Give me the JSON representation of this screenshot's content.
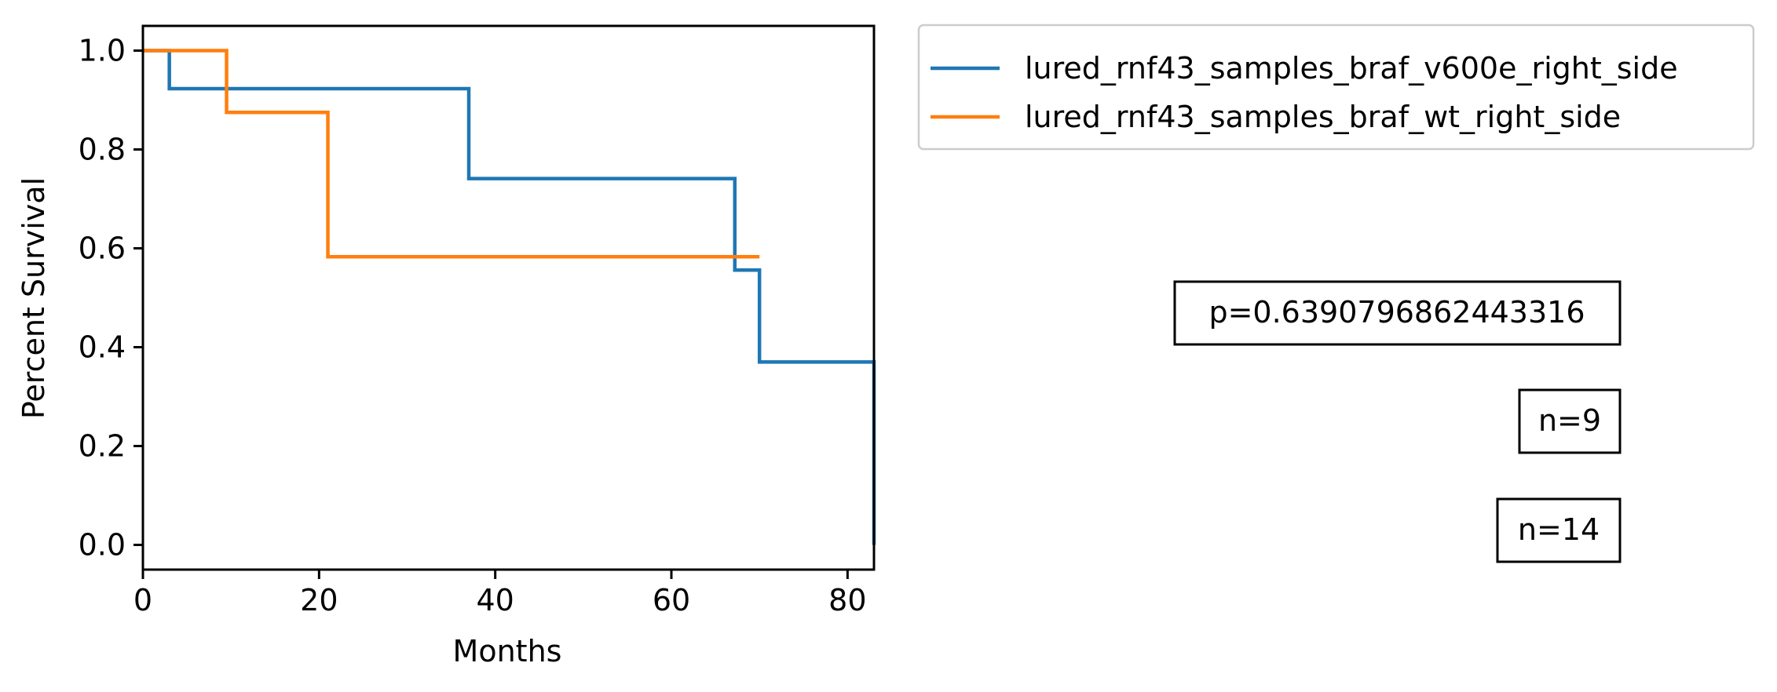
{
  "chart_data": {
    "type": "line",
    "xlabel": "Months",
    "ylabel": "Percent Survival",
    "xlim": [
      0,
      83
    ],
    "ylim": [
      -0.05,
      1.05
    ],
    "xticks": [
      0,
      20,
      40,
      60,
      80
    ],
    "yticks": [
      0.0,
      0.2,
      0.4,
      0.6,
      0.8,
      1.0
    ],
    "x_tick_labels": [
      "0",
      "20",
      "40",
      "60",
      "80"
    ],
    "y_tick_labels": [
      "0.0",
      "0.2",
      "0.4",
      "0.6",
      "0.8",
      "1.0"
    ],
    "grid": false,
    "legend_position": "outside top-right",
    "series": [
      {
        "name": "lured_rnf43_samples_braf_v600e_right_side",
        "color": "#1f77b4",
        "step": true,
        "x": [
          0,
          3,
          37,
          67.2,
          70,
          83,
          83
        ],
        "y": [
          1.0,
          0.923,
          0.741,
          0.556,
          0.37,
          0.37,
          0.0
        ]
      },
      {
        "name": "lured_rnf43_samples_braf_wt_right_side",
        "color": "#ff7f0e",
        "step": true,
        "x": [
          0,
          9.5,
          21,
          70
        ],
        "y": [
          1.0,
          0.875,
          0.583,
          0.583
        ]
      }
    ],
    "annotations": [
      "p=0.6390796862443316",
      "n=9",
      "n=14"
    ]
  }
}
